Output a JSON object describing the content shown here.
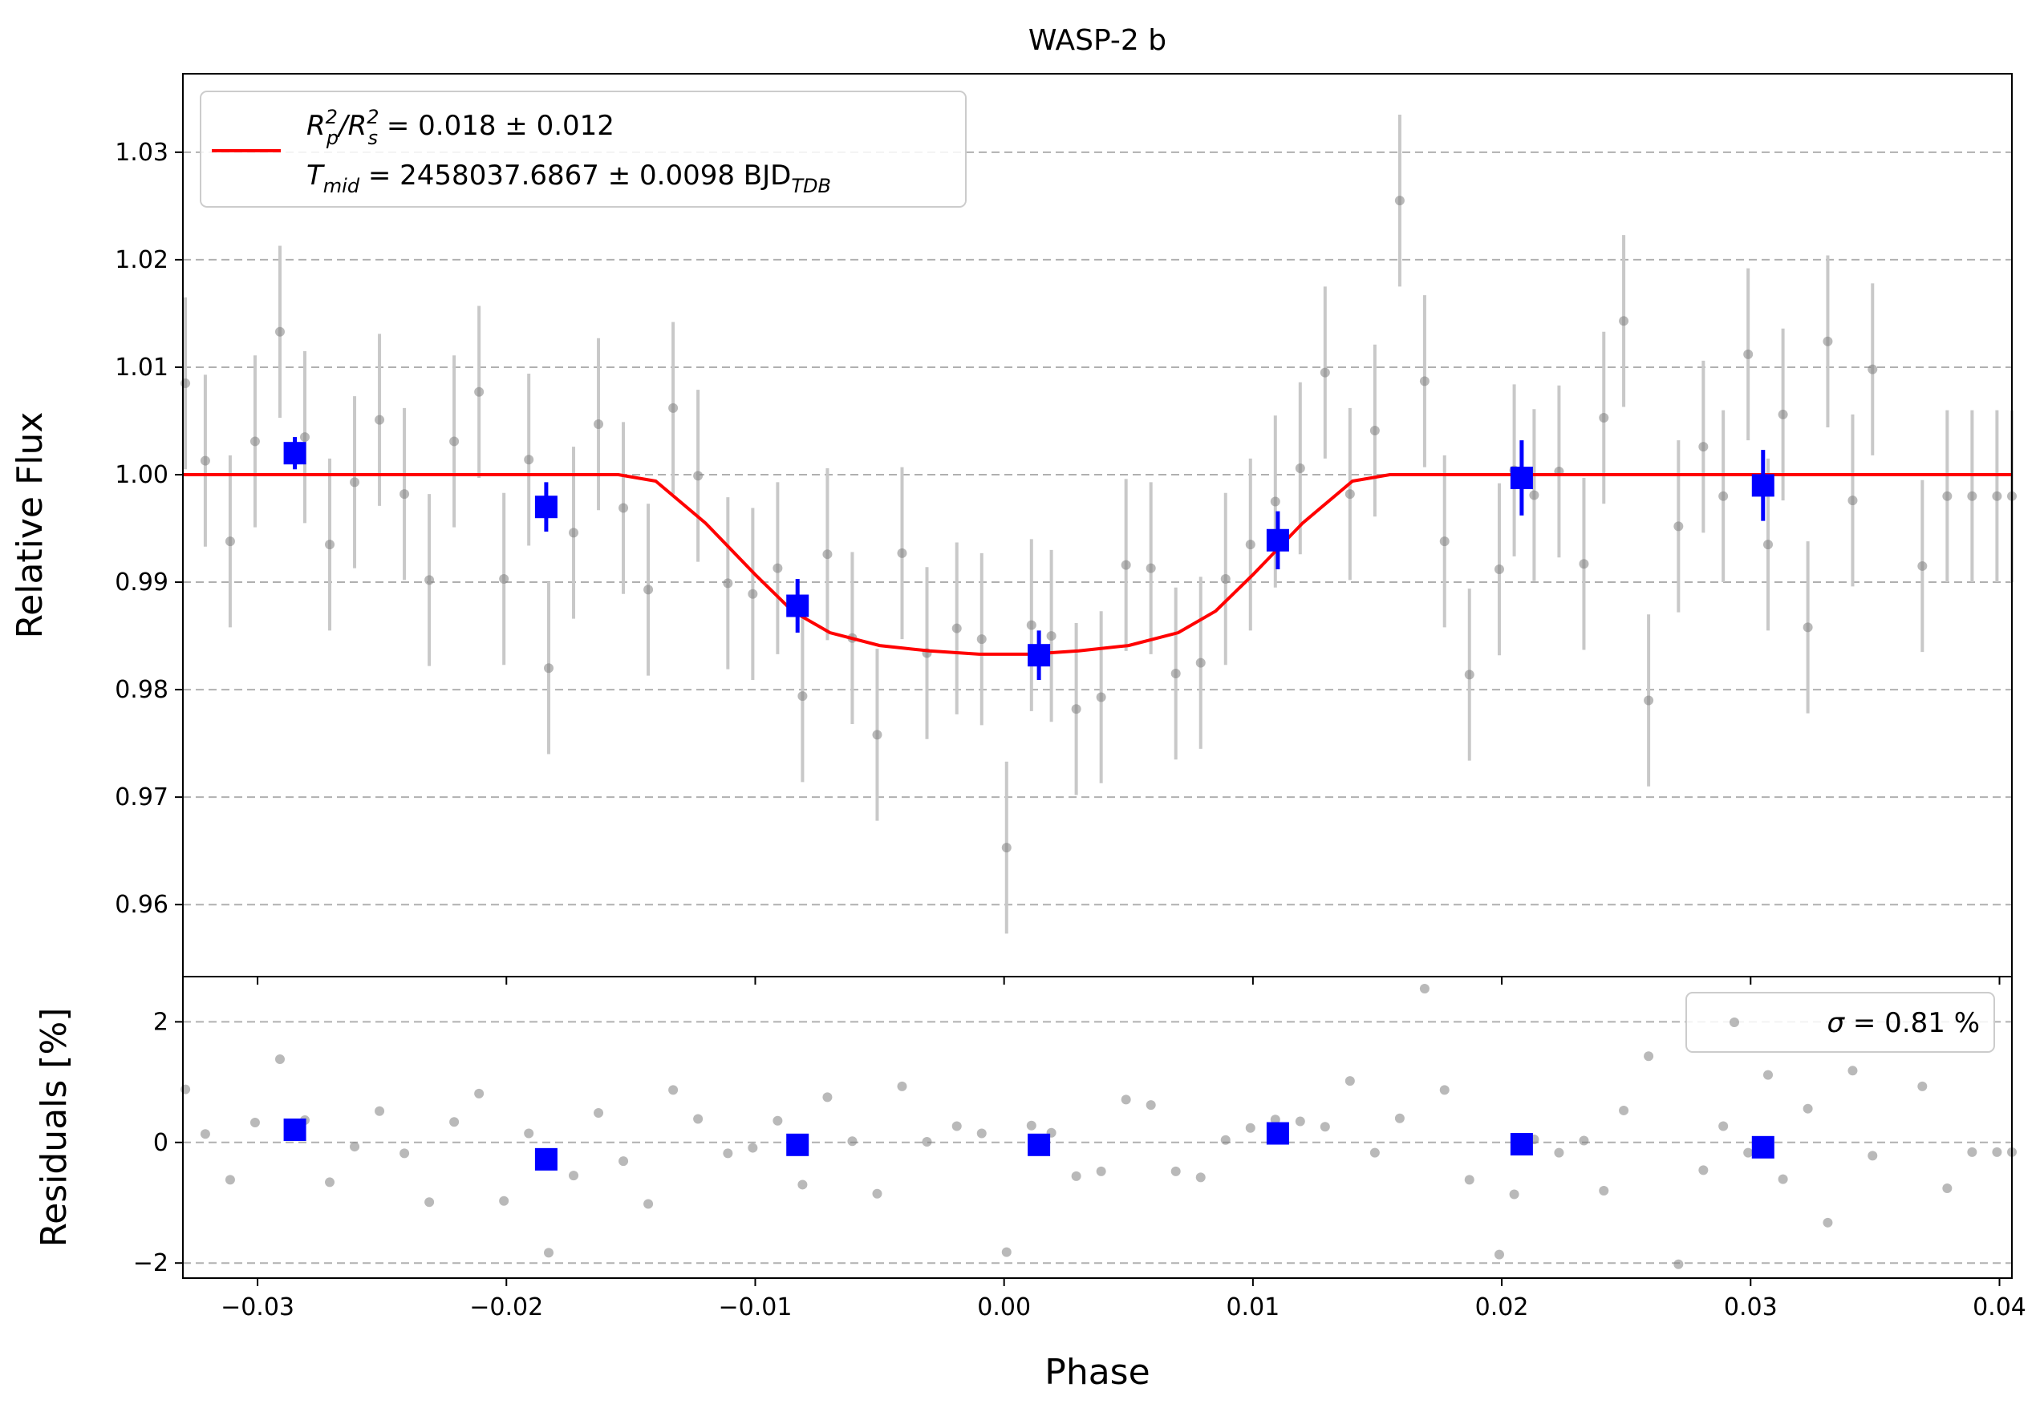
{
  "colors": {
    "model": "#ff0000",
    "binned": "#0000ff",
    "raw_points": "#808080",
    "raw_errorbars": "#c8c8c8",
    "grid": "#b0b0b0"
  },
  "chart_data": [
    {
      "type": "scatter",
      "panel": "flux",
      "title": "WASP-2 b",
      "xlabel": "",
      "ylabel": "Relative Flux",
      "xlim": [
        -0.033,
        0.0405
      ],
      "ylim": [
        0.9533,
        1.0373
      ],
      "xticks": [
        -0.03,
        -0.02,
        -0.01,
        0.0,
        0.01,
        0.02,
        0.03,
        0.04
      ],
      "xtick_labels": [
        "",
        "",
        "",
        "",
        "",
        "",
        "",
        ""
      ],
      "yticks": [
        0.96,
        0.97,
        0.98,
        0.99,
        1.0,
        1.01,
        1.02,
        1.03
      ],
      "ytick_labels": [
        "0.96",
        "0.97",
        "0.98",
        "0.99",
        "1.00",
        "1.01",
        "1.02",
        "1.03"
      ],
      "grid": "horizontal dashed",
      "legend": {
        "placement": "top-left",
        "line1": {
          "pre": "R",
          "sub1": "p",
          "sup1": "2",
          "mid": "/R",
          "sub2": "s",
          "sup2": "2",
          "post": " = 0.018 ± 0.012"
        },
        "line2": {
          "pre": "T",
          "sub1": "mid",
          "post": " = 2458037.6867 ± 0.0098 BJD",
          "sub2": "TDB"
        }
      },
      "model": {
        "name": "transit model",
        "x": [
          -0.033,
          -0.0155,
          -0.014,
          -0.012,
          -0.01,
          -0.0085,
          -0.007,
          -0.005,
          -0.003,
          -0.001,
          0.0,
          0.001,
          0.003,
          0.005,
          0.007,
          0.0085,
          0.01,
          0.012,
          0.014,
          0.0155,
          0.0405
        ],
        "y": [
          1.0,
          1.0,
          0.9994,
          0.9955,
          0.9907,
          0.9873,
          0.9853,
          0.9841,
          0.9836,
          0.9833,
          0.9833,
          0.9833,
          0.9836,
          0.9841,
          0.9853,
          0.9873,
          0.9907,
          0.9955,
          0.9994,
          1.0,
          1.0
        ]
      },
      "raw": {
        "error": 0.008,
        "x": [
          -0.0329,
          -0.0321,
          -0.0311,
          -0.0301,
          -0.0291,
          -0.0281,
          -0.0271,
          -0.0261,
          -0.0251,
          -0.0241,
          -0.0231,
          -0.0221,
          -0.0211,
          -0.0201,
          -0.0191,
          -0.0183,
          -0.0173,
          -0.0163,
          -0.0153,
          -0.0143,
          -0.0133,
          -0.0123,
          -0.0111,
          -0.0101,
          -0.0091,
          -0.0081,
          -0.0071,
          -0.0061,
          -0.0051,
          -0.0041,
          -0.0031,
          -0.0019,
          -0.0009,
          0.0001,
          0.0011,
          0.0019,
          0.0029,
          0.0039,
          0.0049,
          0.0059,
          0.0069,
          0.0079,
          0.0089,
          0.0099,
          0.0109,
          0.0119,
          0.0129,
          0.0139,
          0.0149,
          0.0159,
          0.0169,
          0.0177,
          0.0187,
          0.0199,
          0.0205,
          0.0213,
          0.0223,
          0.0233,
          0.0241,
          0.0249,
          0.0259,
          0.0271,
          0.0281,
          0.0289,
          0.0299,
          0.0307,
          0.0313,
          0.0323,
          0.0331,
          0.0341,
          0.0349,
          0.0369,
          0.0379,
          0.0389,
          0.0399,
          0.0405
        ],
        "y": [
          1.0085,
          1.0013,
          0.9938,
          1.0031,
          1.0133,
          1.0035,
          0.9935,
          0.9993,
          1.0051,
          0.9982,
          0.9902,
          1.0031,
          1.0077,
          0.9903,
          1.0014,
          0.982,
          0.9946,
          1.0047,
          0.9969,
          0.9893,
          1.0062,
          0.9999,
          0.9899,
          0.9889,
          0.9913,
          0.9794,
          0.9926,
          0.9848,
          0.9758,
          0.9927,
          0.9834,
          0.9857,
          0.9847,
          0.9653,
          0.986,
          0.985,
          0.9782,
          0.9793,
          0.9916,
          0.9913,
          0.9815,
          0.9825,
          0.9903,
          0.9935,
          0.9975,
          1.0006,
          1.0095,
          0.9982,
          1.0041,
          1.0255,
          1.0087,
          0.9938,
          0.9814,
          0.9912,
          1.0004,
          0.9981,
          1.0003,
          0.9917,
          1.0053,
          1.0143,
          0.979,
          0.9952,
          1.0026,
          0.998,
          1.0112,
          0.9935,
          1.0056,
          0.9858,
          1.0124,
          0.9976,
          1.0098,
          0.9915,
          0.998,
          0.998,
          0.998,
          0.998
        ]
      },
      "binned": {
        "x": [
          -0.0285,
          -0.0184,
          -0.0083,
          0.0014,
          0.011,
          0.0208,
          0.0305
        ],
        "y": [
          1.002,
          0.997,
          0.9878,
          0.9832,
          0.9939,
          0.9997,
          0.999
        ],
        "err": [
          0.0015,
          0.0023,
          0.0025,
          0.0023,
          0.0027,
          0.0035,
          0.0033
        ]
      }
    },
    {
      "type": "scatter",
      "panel": "residuals",
      "xlabel": "Phase",
      "ylabel": "Residuals [%]",
      "xlim": [
        -0.033,
        0.0405
      ],
      "ylim": [
        -2.25,
        2.75
      ],
      "xticks": [
        -0.03,
        -0.02,
        -0.01,
        0.0,
        0.01,
        0.02,
        0.03,
        0.04
      ],
      "xtick_labels": [
        "−0.03",
        "−0.02",
        "−0.01",
        "0.00",
        "0.01",
        "0.02",
        "0.03",
        "0.04"
      ],
      "yticks": [
        -2,
        0,
        2
      ],
      "ytick_labels": [
        "−2",
        "0",
        "2"
      ],
      "grid": "horizontal dashed",
      "legend": {
        "placement": "top-right",
        "label_pre": "σ",
        "label_post": " = 0.81 %"
      },
      "raw": {
        "x": [
          -0.0329,
          -0.0321,
          -0.0311,
          -0.0301,
          -0.0291,
          -0.0281,
          -0.0271,
          -0.0261,
          -0.0251,
          -0.0241,
          -0.0231,
          -0.0221,
          -0.0211,
          -0.0201,
          -0.0191,
          -0.0183,
          -0.0173,
          -0.0163,
          -0.0153,
          -0.0143,
          -0.0133,
          -0.0123,
          -0.0111,
          -0.0101,
          -0.0091,
          -0.0081,
          -0.0071,
          -0.0061,
          -0.0051,
          -0.0041,
          -0.0031,
          -0.0019,
          -0.0009,
          0.0001,
          0.0011,
          0.0019,
          0.0029,
          0.0039,
          0.0049,
          0.0059,
          0.0069,
          0.0079,
          0.0089,
          0.0099,
          0.0109,
          0.0119,
          0.0129,
          0.0139,
          0.0149,
          0.0159,
          0.0169,
          0.0177,
          0.0187,
          0.0199,
          0.0205,
          0.0213,
          0.0223,
          0.0233,
          0.0241,
          0.0249,
          0.0259,
          0.0271,
          0.0281,
          0.0289,
          0.0299,
          0.0307,
          0.0313,
          0.0323,
          0.0331,
          0.0341,
          0.0349,
          0.0369,
          0.0379,
          0.0389,
          0.0399,
          0.0405
        ],
        "y": [
          0.88,
          0.14,
          -0.62,
          0.33,
          1.38,
          0.37,
          -0.66,
          -0.07,
          0.52,
          -0.18,
          -0.99,
          0.34,
          0.81,
          -0.97,
          0.15,
          -1.83,
          -0.55,
          0.49,
          -0.31,
          -1.02,
          0.87,
          0.39,
          -0.18,
          -0.09,
          0.36,
          -0.7,
          0.75,
          0.02,
          -0.85,
          0.93,
          0.01,
          0.27,
          0.15,
          -1.82,
          0.28,
          0.16,
          -0.56,
          -0.48,
          0.71,
          0.62,
          -0.48,
          -0.58,
          0.04,
          0.24,
          0.38,
          0.35,
          0.26,
          1.02,
          -0.17,
          0.4,
          2.55,
          0.87,
          -0.62,
          -1.86,
          -0.86,
          0.05,
          -0.17,
          0.03,
          -0.8,
          0.53,
          1.43,
          -2.02,
          -0.46,
          0.27,
          -0.17,
          1.12,
          -0.61,
          0.56,
          -1.33,
          1.19,
          -0.22,
          0.93,
          -0.76,
          -0.16,
          -0.16,
          -0.16
        ]
      },
      "binned": {
        "x": [
          -0.0285,
          -0.0184,
          -0.0083,
          0.0014,
          0.011,
          0.0208,
          0.0305
        ],
        "y": [
          0.21,
          -0.28,
          -0.04,
          -0.04,
          0.15,
          -0.03,
          -0.08
        ]
      }
    }
  ]
}
